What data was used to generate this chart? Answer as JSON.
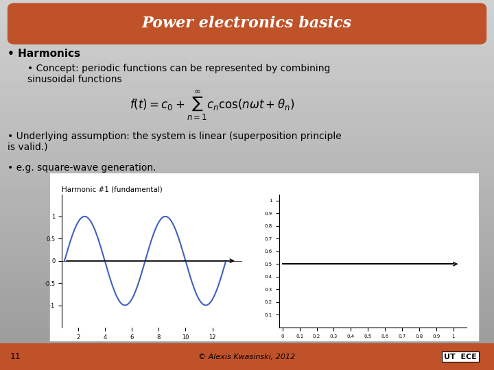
{
  "title": "Power electronics basics",
  "title_bg_color": "#c0522a",
  "title_text_color": "#ffffff",
  "bullet1": "Harmonics",
  "bullet2": "Concept: periodic functions can be represented by combining\nsinusoidal functions",
  "formula": "$f(t) = c_0 + \\sum_{n=1}^{\\infty} c_n \\cos(n\\omega t + \\theta_n)$",
  "bullet3": "Underlying assumption: the system is linear (superposition principle\nis valid.)",
  "bullet4": "e.g. square-wave generation.",
  "harmonic_label": "Harmonic #1 (fundamental)",
  "footer_num": "11",
  "footer_copy": "© Alexis Kwasinski, 2012",
  "footer_bg": "#c0522a",
  "sine_color": "#4060c0",
  "flat_color": "#000000"
}
